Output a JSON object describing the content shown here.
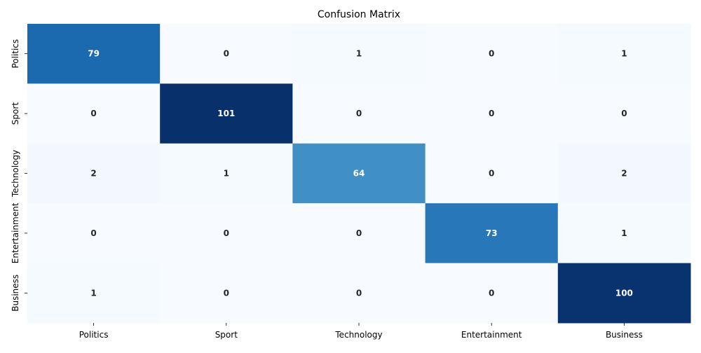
{
  "chart_data": {
    "type": "heatmap",
    "title": "Confusion Matrix",
    "xlabel": "",
    "ylabel": "",
    "x_categories": [
      "Politics",
      "Sport",
      "Technology",
      "Entertainment",
      "Business"
    ],
    "y_categories": [
      "Politics",
      "Sport",
      "Technology",
      "Entertainment",
      "Business"
    ],
    "values": [
      [
        79,
        0,
        1,
        0,
        1
      ],
      [
        0,
        101,
        0,
        0,
        0
      ],
      [
        2,
        1,
        64,
        0,
        2
      ],
      [
        0,
        0,
        0,
        73,
        1
      ],
      [
        1,
        0,
        0,
        0,
        100
      ]
    ],
    "colormap": "Blues",
    "color_range": [
      0,
      101
    ],
    "annotations_bold": true,
    "colorbar": false,
    "grid": false
  }
}
